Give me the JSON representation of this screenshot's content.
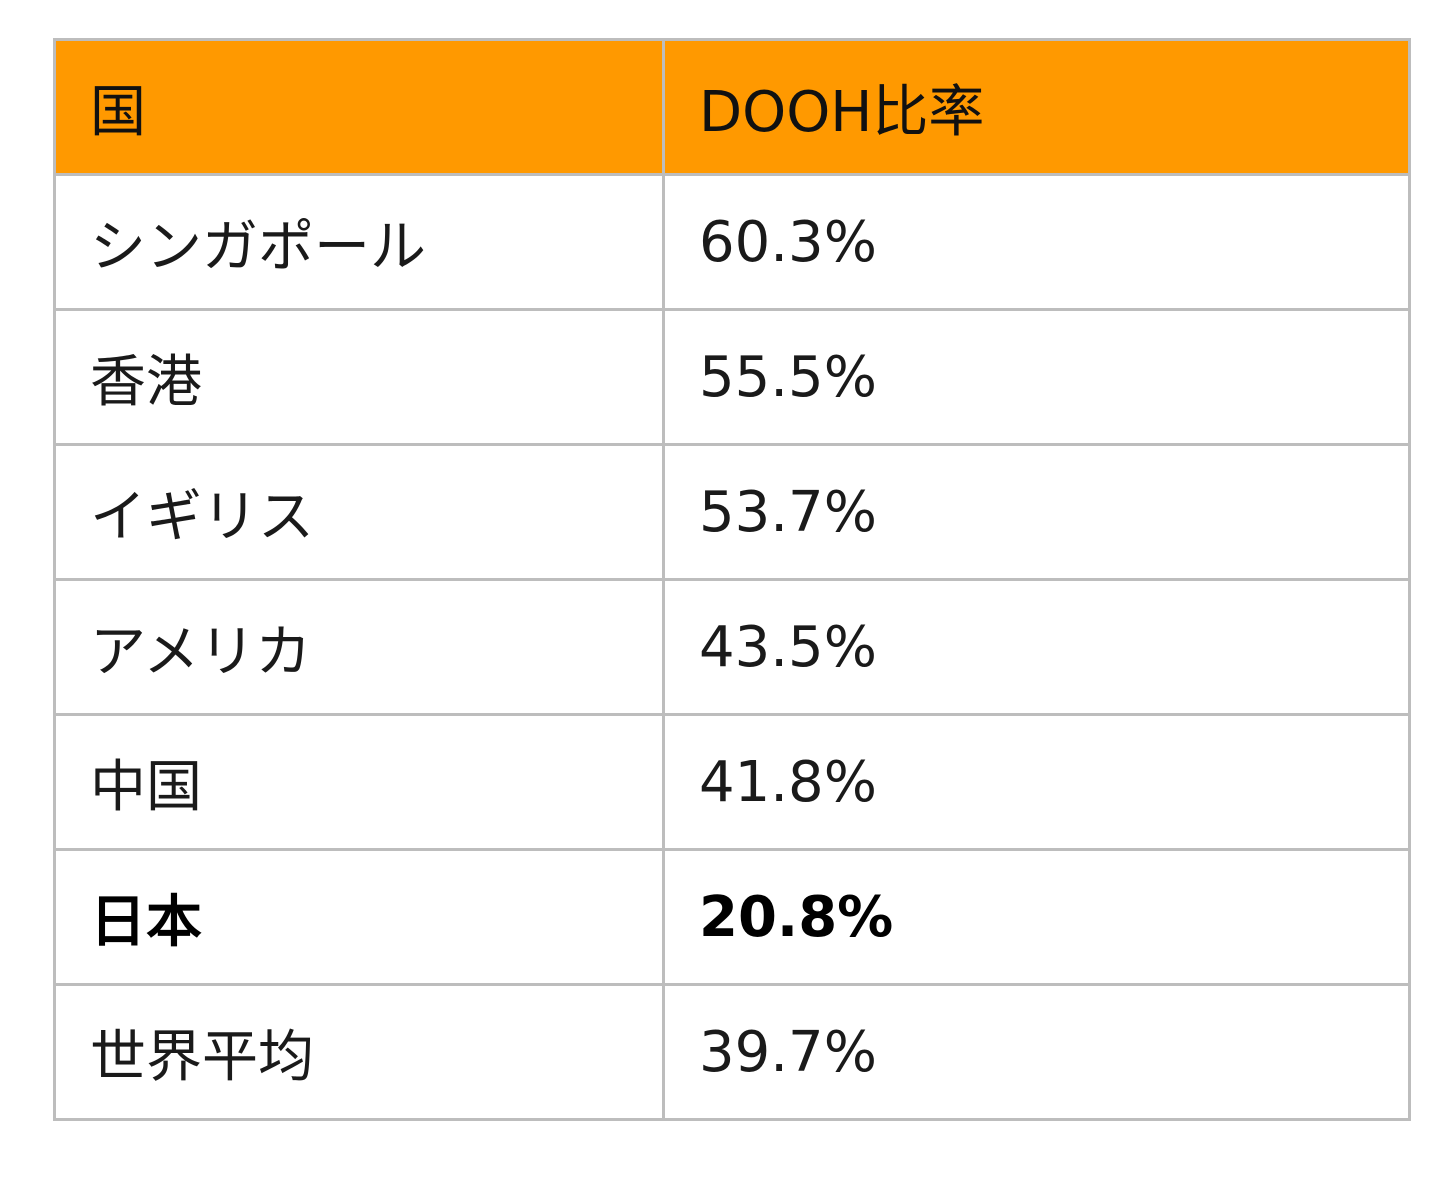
{
  "table": {
    "header_bg": "#ff9900",
    "headers": [
      "国",
      "DOOH比率"
    ],
    "rows": [
      {
        "country": "シンガポール",
        "ratio": "60.3%",
        "bold": false
      },
      {
        "country": "香港",
        "ratio": "55.5%",
        "bold": false
      },
      {
        "country": "イギリス",
        "ratio": "53.7%",
        "bold": false
      },
      {
        "country": "アメリカ",
        "ratio": "43.5%",
        "bold": false
      },
      {
        "country": "中国",
        "ratio": "41.8%",
        "bold": false
      },
      {
        "country": "日本",
        "ratio": "20.8%",
        "bold": true
      },
      {
        "country": "世界平均",
        "ratio": "39.7%",
        "bold": false
      }
    ]
  }
}
